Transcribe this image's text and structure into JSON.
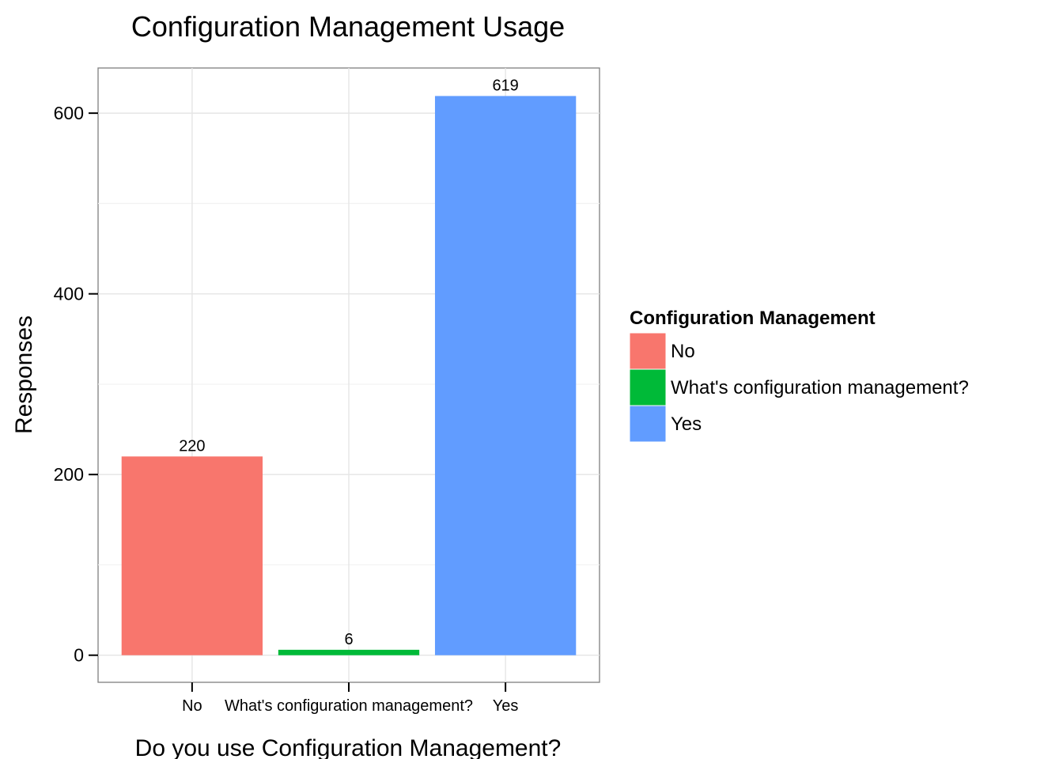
{
  "chart_data": {
    "type": "bar",
    "title": "Configuration Management Usage",
    "xlabel": "Do you use Configuration Management?",
    "ylabel": "Responses",
    "categories": [
      "No",
      "What's configuration management?",
      "Yes"
    ],
    "values": [
      220,
      6,
      619
    ],
    "data_labels": [
      "220",
      "6",
      "619"
    ],
    "colors": [
      "#F8766D",
      "#00BA38",
      "#619CFF"
    ],
    "ylim": [
      -30,
      650
    ],
    "yticks": [
      0,
      200,
      400,
      600
    ],
    "ytick_labels": [
      "0",
      "200",
      "400",
      "600"
    ],
    "grid": true,
    "legend": {
      "title": "Configuration Management",
      "position": "right",
      "entries": [
        "No",
        "What's configuration management?",
        "Yes"
      ]
    }
  }
}
